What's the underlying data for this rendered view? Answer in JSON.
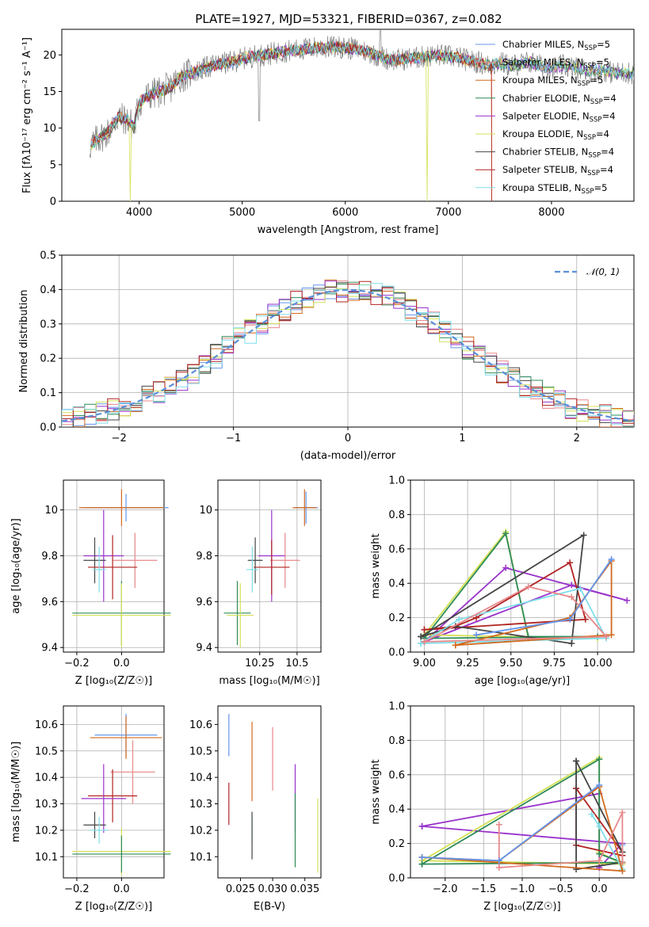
{
  "figure": {
    "title": "PLATE=1927, MJD=53321, FIBERID=0367, z=0.082"
  },
  "chart_data": [
    {
      "id": "spectrum",
      "type": "line",
      "xlabel": "wavelength [Angstrom, rest frame]",
      "ylabel": "Flux [fλ10⁻¹⁷ erg cm⁻² s⁻¹ A⁻¹]",
      "xlim": [
        3250,
        8800
      ],
      "ylim": [
        0,
        23.5
      ],
      "xticks": [
        4000,
        5000,
        6000,
        7000,
        8000
      ],
      "yticks": [
        0,
        5,
        10,
        15,
        20
      ],
      "legend_position": "right",
      "continuum": {
        "x": [
          3520,
          3600,
          3700,
          3800,
          3900,
          3950,
          4000,
          4100,
          4200,
          4300,
          4400,
          4500,
          4600,
          4700,
          4800,
          4900,
          5000,
          5100,
          5200,
          5300,
          5400,
          5500,
          5600,
          5700,
          5800,
          5900,
          6000,
          6100,
          6200,
          6300,
          6400,
          6500,
          6600,
          6700,
          6800,
          6900,
          7000,
          7100,
          7200,
          7300,
          7400,
          7500,
          7600,
          7700,
          7800,
          7900,
          8000,
          8100,
          8200,
          8300,
          8400,
          8500,
          8600,
          8700,
          8800
        ],
        "y": [
          7.5,
          8.5,
          9.5,
          11.5,
          11,
          10,
          13.5,
          14.5,
          15,
          15.5,
          17,
          17.5,
          18,
          18.5,
          18.8,
          19,
          19.5,
          19.8,
          20,
          20.2,
          20.5,
          20.6,
          20.8,
          21,
          21,
          21.1,
          21,
          20.8,
          20.5,
          20,
          19.5,
          19.3,
          19.5,
          19.6,
          19.8,
          20,
          19.8,
          19.6,
          19.2,
          19,
          18.5,
          19,
          18.5,
          18.8,
          19,
          18.5,
          18.2,
          18.5,
          18.3,
          18,
          17.8,
          18,
          17.5,
          17.6,
          17.5
        ]
      },
      "features": [
        {
          "x": 3520,
          "y": 0.3
        },
        {
          "x": 3915,
          "y": 0
        },
        {
          "x": 5165,
          "y": 7
        },
        {
          "x": 6790,
          "y": 0
        },
        {
          "x": 7420,
          "y": 0
        },
        {
          "x": 6340,
          "y": 23.5
        }
      ],
      "series": [
        {
          "name": "Chabrier MILES, N",
          "sub": "SSP",
          "eq": "=5",
          "color": "#6495ED"
        },
        {
          "name": "Salpeter MILES, N",
          "sub": "SSP",
          "eq": "=5",
          "color": "#E8888A"
        },
        {
          "name": "Kroupa MILES, N",
          "sub": "SSP",
          "eq": "=5",
          "color": "#D2691E"
        },
        {
          "name": "Chabrier ELODIE, N",
          "sub": "SSP",
          "eq": "=4",
          "color": "#2E8B57"
        },
        {
          "name": "Salpeter ELODIE, N",
          "sub": "SSP",
          "eq": "=4",
          "color": "#9932CC"
        },
        {
          "name": "Kroupa ELODIE, N",
          "sub": "SSP",
          "eq": "=4",
          "color": "#D4E157"
        },
        {
          "name": "Chabrier STELIB, N",
          "sub": "SSP",
          "eq": "=4",
          "color": "#444444"
        },
        {
          "name": "Salpeter STELIB, N",
          "sub": "SSP",
          "eq": "=4",
          "color": "#B22222"
        },
        {
          "name": "Kroupa STELIB, N",
          "sub": "SSP",
          "eq": "=5",
          "color": "#80DEEA"
        }
      ]
    },
    {
      "id": "residuals",
      "type": "histogram",
      "xlabel": "(data-model)/error",
      "ylabel": "Normed distribution",
      "xlim": [
        -2.5,
        2.5
      ],
      "ylim": [
        0,
        0.5
      ],
      "xticks": [
        -2,
        -1,
        0,
        1,
        2
      ],
      "yticks": [
        0.0,
        0.1,
        0.2,
        0.3,
        0.4,
        0.5
      ],
      "legend": "𝒩(0, 1)",
      "legend_position": "top-right",
      "reference_curve": {
        "type": "gaussian",
        "mean": 0,
        "sigma": 1,
        "color": "#5A8FD8"
      },
      "bin_width": 0.1,
      "grid": true
    },
    {
      "id": "age-vs-z",
      "type": "errorbar",
      "xlabel": "Z [log₁₀(Z/Z☉)]",
      "ylabel": "age  [log₁₀(age/yr)]",
      "xlim": [
        -0.26,
        0.19
      ],
      "ylim": [
        9.38,
        10.13
      ],
      "xticks": [
        -0.2,
        0.0
      ],
      "yticks": [
        9.4,
        9.6,
        9.8,
        10.0
      ],
      "grid": true,
      "points": [
        {
          "series": "Chabrier MILES",
          "x": 0.02,
          "xerr": 0.19,
          "y": 10.01,
          "yerr": 0.06
        },
        {
          "series": "Kroupa MILES",
          "x": 0.0,
          "xerr": 0.19,
          "y": 10.01,
          "yerr": 0.08
        },
        {
          "series": "Salpeter MILES",
          "x": 0.06,
          "xerr": 0.1,
          "y": 9.78,
          "yerr": 0.12
        },
        {
          "series": "Salpeter ELODIE",
          "x": -0.08,
          "xerr": 0.09,
          "y": 9.8,
          "yerr": 0.2
        },
        {
          "series": "Chabrier STELIB",
          "x": -0.12,
          "xerr": 0.05,
          "y": 9.78,
          "yerr": 0.1
        },
        {
          "series": "Salpeter STELIB",
          "x": -0.04,
          "xerr": 0.11,
          "y": 9.75,
          "yerr": 0.14
        },
        {
          "series": "Kroupa STELIB",
          "x": -0.1,
          "xerr": 0.03,
          "y": 9.74,
          "yerr": 0.1
        },
        {
          "series": "Chabrier ELODIE",
          "x": 0.0,
          "xerr": 0.22,
          "y": 9.55,
          "yerr": 0.14
        },
        {
          "series": "Kroupa ELODIE",
          "x": 0.0,
          "xerr": 0.22,
          "y": 9.54,
          "yerr": 0.14
        }
      ]
    },
    {
      "id": "age-vs-mass",
      "type": "errorbar",
      "xlabel": "mass [log₁₀(M/M☉)]",
      "ylabel": "",
      "xlim": [
        9.97,
        10.66
      ],
      "ylim": [
        9.38,
        10.13
      ],
      "xticks": [
        10.25,
        10.5
      ],
      "yticks": [
        9.4,
        9.6,
        9.8,
        10.0
      ],
      "grid": true,
      "points": [
        {
          "series": "Chabrier MILES",
          "x": 10.56,
          "xerr": 0.08,
          "y": 10.01,
          "yerr": 0.07
        },
        {
          "series": "Kroupa MILES",
          "x": 10.55,
          "xerr": 0.08,
          "y": 10.01,
          "yerr": 0.08
        },
        {
          "series": "Salpeter MILES",
          "x": 10.42,
          "xerr": 0.1,
          "y": 9.78,
          "yerr": 0.12
        },
        {
          "series": "Salpeter ELODIE",
          "x": 10.33,
          "xerr": 0.09,
          "y": 9.8,
          "yerr": 0.2
        },
        {
          "series": "Salpeter STELIB",
          "x": 10.33,
          "xerr": 0.12,
          "y": 9.75,
          "yerr": 0.12
        },
        {
          "series": "Chabrier STELIB",
          "x": 10.22,
          "xerr": 0.05,
          "y": 9.78,
          "yerr": 0.1
        },
        {
          "series": "Kroupa STELIB",
          "x": 10.2,
          "xerr": 0.04,
          "y": 9.74,
          "yerr": 0.1
        },
        {
          "series": "Chabrier ELODIE",
          "x": 10.1,
          "xerr": 0.09,
          "y": 9.55,
          "yerr": 0.14
        },
        {
          "series": "Kroupa ELODIE",
          "x": 10.12,
          "xerr": 0.09,
          "y": 9.54,
          "yerr": 0.14
        }
      ]
    },
    {
      "id": "mw-vs-age",
      "type": "line",
      "xlabel": "age  [log₁₀(age/yr)]",
      "ylabel": "mass weight",
      "xlim": [
        8.92,
        10.21
      ],
      "ylim": [
        0.0,
        1.0
      ],
      "xticks": [
        9.0,
        9.25,
        9.5,
        9.75,
        10.0
      ],
      "yticks": [
        0.0,
        0.2,
        0.4,
        0.6,
        0.8,
        1.0
      ],
      "grid": true,
      "series": [
        {
          "name": "Salpeter ELODIE",
          "x": [
            9.0,
            9.47,
            10.17,
            9.85,
            9.0
          ],
          "y": [
            0.06,
            0.49,
            0.3,
            0.39,
            0.06
          ]
        },
        {
          "name": "Kroupa ELODIE",
          "x": [
            9.0,
            9.47,
            9.6,
            10.0,
            9.0
          ],
          "y": [
            0.1,
            0.7,
            0.08,
            0.08,
            0.1
          ]
        },
        {
          "name": "Chabrier ELODIE",
          "x": [
            9.0,
            9.47,
            9.6,
            10.0,
            9.0
          ],
          "y": [
            0.08,
            0.69,
            0.09,
            0.09,
            0.08
          ]
        },
        {
          "name": "Salpeter STELIB",
          "x": [
            9.0,
            9.18,
            9.3,
            9.84,
            9.93,
            9.0
          ],
          "y": [
            0.13,
            0.15,
            0.2,
            0.52,
            0.19,
            0.13
          ]
        },
        {
          "name": "Chabrier STELIB",
          "x": [
            8.98,
            9.18,
            9.85,
            9.92,
            8.98
          ],
          "y": [
            0.09,
            0.15,
            0.05,
            0.68,
            0.09
          ]
        },
        {
          "name": "Kroupa STELIB",
          "x": [
            8.98,
            9.2,
            9.9,
            10.05,
            8.98
          ],
          "y": [
            0.05,
            0.19,
            0.37,
            0.08,
            0.05
          ]
        },
        {
          "name": "Kroupa MILES",
          "x": [
            9.18,
            9.84,
            10.08,
            10.08,
            9.18
          ],
          "y": [
            0.04,
            0.2,
            0.53,
            0.1,
            0.04
          ]
        },
        {
          "name": "Salpeter MILES",
          "x": [
            9.0,
            9.6,
            9.85,
            10.05,
            9.0
          ],
          "y": [
            0.06,
            0.38,
            0.32,
            0.09,
            0.06
          ]
        },
        {
          "name": "Chabrier MILES",
          "x": [
            9.3,
            9.84,
            10.08
          ],
          "y": [
            0.1,
            0.19,
            0.54
          ]
        }
      ]
    },
    {
      "id": "mass-vs-z",
      "type": "errorbar",
      "xlabel": "Z [log₁₀(Z/Z☉)]",
      "ylabel": "mass [log₁₀(M/M☉)]",
      "xlim": [
        -0.26,
        0.19
      ],
      "ylim": [
        10.02,
        10.67
      ],
      "xticks": [
        -0.2,
        0.0
      ],
      "yticks": [
        10.1,
        10.2,
        10.3,
        10.4,
        10.5,
        10.6
      ],
      "grid": true,
      "points": [
        {
          "series": "Chabrier MILES",
          "x": 0.02,
          "xerr": 0.14,
          "y": 10.56,
          "yerr": 0.08
        },
        {
          "series": "Kroupa MILES",
          "x": 0.02,
          "xerr": 0.16,
          "y": 10.55,
          "yerr": 0.08
        },
        {
          "series": "Salpeter MILES",
          "x": 0.05,
          "xerr": 0.1,
          "y": 10.42,
          "yerr": 0.12
        },
        {
          "series": "Salpeter STELIB",
          "x": -0.04,
          "xerr": 0.11,
          "y": 10.33,
          "yerr": 0.1
        },
        {
          "series": "Salpeter ELODIE",
          "x": -0.08,
          "xerr": 0.1,
          "y": 10.32,
          "yerr": 0.13
        },
        {
          "series": "Chabrier STELIB",
          "x": -0.12,
          "xerr": 0.05,
          "y": 10.22,
          "yerr": 0.05
        },
        {
          "series": "Kroupa STELIB",
          "x": -0.1,
          "xerr": 0.04,
          "y": 10.2,
          "yerr": 0.05
        },
        {
          "series": "Kroupa ELODIE",
          "x": 0.0,
          "xerr": 0.22,
          "y": 10.12,
          "yerr": 0.09
        },
        {
          "series": "Chabrier ELODIE",
          "x": 0.0,
          "xerr": 0.22,
          "y": 10.11,
          "yerr": 0.07
        }
      ]
    },
    {
      "id": "mass-vs-ebv",
      "type": "errorbar",
      "xlabel": "E(B-V)",
      "ylabel": "",
      "xlim": [
        0.0215,
        0.0375
      ],
      "ylim": [
        10.02,
        10.67
      ],
      "xticks": [
        0.025,
        0.03,
        0.035
      ],
      "yticks": [
        10.1,
        10.2,
        10.3,
        10.4,
        10.5,
        10.6
      ],
      "grid": false,
      "points": [
        {
          "series": "Chabrier MILES",
          "x": 0.0232,
          "y": 10.56,
          "yerr": 0.08
        },
        {
          "series": "Kroupa MILES",
          "x": 0.0268,
          "y": 10.46,
          "yerr": 0.15
        },
        {
          "series": "Salpeter MILES",
          "x": 0.03,
          "y": 10.47,
          "yerr": 0.12
        },
        {
          "series": "Salpeter ELODIE",
          "x": 0.0335,
          "y": 10.32,
          "yerr": 0.13
        },
        {
          "series": "Salpeter STELIB",
          "x": 0.0232,
          "y": 10.3,
          "yerr": 0.08
        },
        {
          "series": "Kroupa STELIB",
          "x": 0.0268,
          "y": 10.2,
          "yerr": 0.05
        },
        {
          "series": "Chabrier STELIB",
          "x": 0.0268,
          "y": 10.18,
          "yerr": 0.09
        },
        {
          "series": "Chabrier ELODIE",
          "x": 0.0335,
          "y": 10.2,
          "yerr": 0.14
        },
        {
          "series": "Kroupa ELODIE",
          "x": 0.037,
          "y": 10.18,
          "yerr": 0.14
        }
      ]
    },
    {
      "id": "mw-vs-z",
      "type": "line",
      "xlabel": "Z [log₁₀(Z/Z☉)]",
      "ylabel": "mass weight",
      "xlim": [
        -2.45,
        0.45
      ],
      "ylim": [
        0.0,
        1.0
      ],
      "xticks": [
        -2.0,
        -1.5,
        -1.0,
        -0.5,
        0.0
      ],
      "yticks": [
        0.0,
        0.2,
        0.4,
        0.6,
        0.8,
        1.0
      ],
      "grid": true,
      "series": [
        {
          "name": "Salpeter ELODIE",
          "x": [
            -2.3,
            0.0,
            0.0,
            0.3,
            -2.3
          ],
          "y": [
            0.3,
            0.49,
            0.06,
            0.2,
            0.3
          ]
        },
        {
          "name": "Kroupa ELODIE",
          "x": [
            -2.3,
            0.0,
            0.0,
            0.3,
            -2.3
          ],
          "y": [
            0.1,
            0.7,
            0.15,
            0.08,
            0.1
          ]
        },
        {
          "name": "Chabrier ELODIE",
          "x": [
            -2.3,
            0.0,
            0.0,
            0.3,
            -2.3
          ],
          "y": [
            0.08,
            0.69,
            0.14,
            0.09,
            0.08
          ]
        },
        {
          "name": "Salpeter STELIB",
          "x": [
            -0.3,
            -0.3,
            0.3,
            0.3,
            -0.3
          ],
          "y": [
            0.52,
            0.19,
            0.13,
            0.15,
            0.52
          ]
        },
        {
          "name": "Chabrier STELIB",
          "x": [
            -0.3,
            -0.3,
            0.3,
            0.3,
            -0.3
          ],
          "y": [
            0.68,
            0.05,
            0.09,
            0.15,
            0.68
          ]
        },
        {
          "name": "Kroupa STELIB",
          "x": [
            -0.1,
            0.0,
            0.3,
            0.3
          ],
          "y": [
            0.37,
            0.3,
            0.05,
            0.19
          ]
        },
        {
          "name": "Kroupa MILES",
          "x": [
            -2.3,
            -1.3,
            0.0,
            0.3,
            -2.3
          ],
          "y": [
            0.12,
            0.1,
            0.53,
            0.04,
            0.12
          ]
        },
        {
          "name": "Salpeter MILES",
          "x": [
            -1.3,
            -1.3,
            0.0,
            0.3,
            0.3
          ],
          "y": [
            0.31,
            0.06,
            0.1,
            0.38,
            0.09
          ]
        },
        {
          "name": "Chabrier MILES",
          "x": [
            -2.3,
            -1.3,
            0.0
          ],
          "y": [
            0.12,
            0.1,
            0.54
          ]
        }
      ]
    }
  ]
}
